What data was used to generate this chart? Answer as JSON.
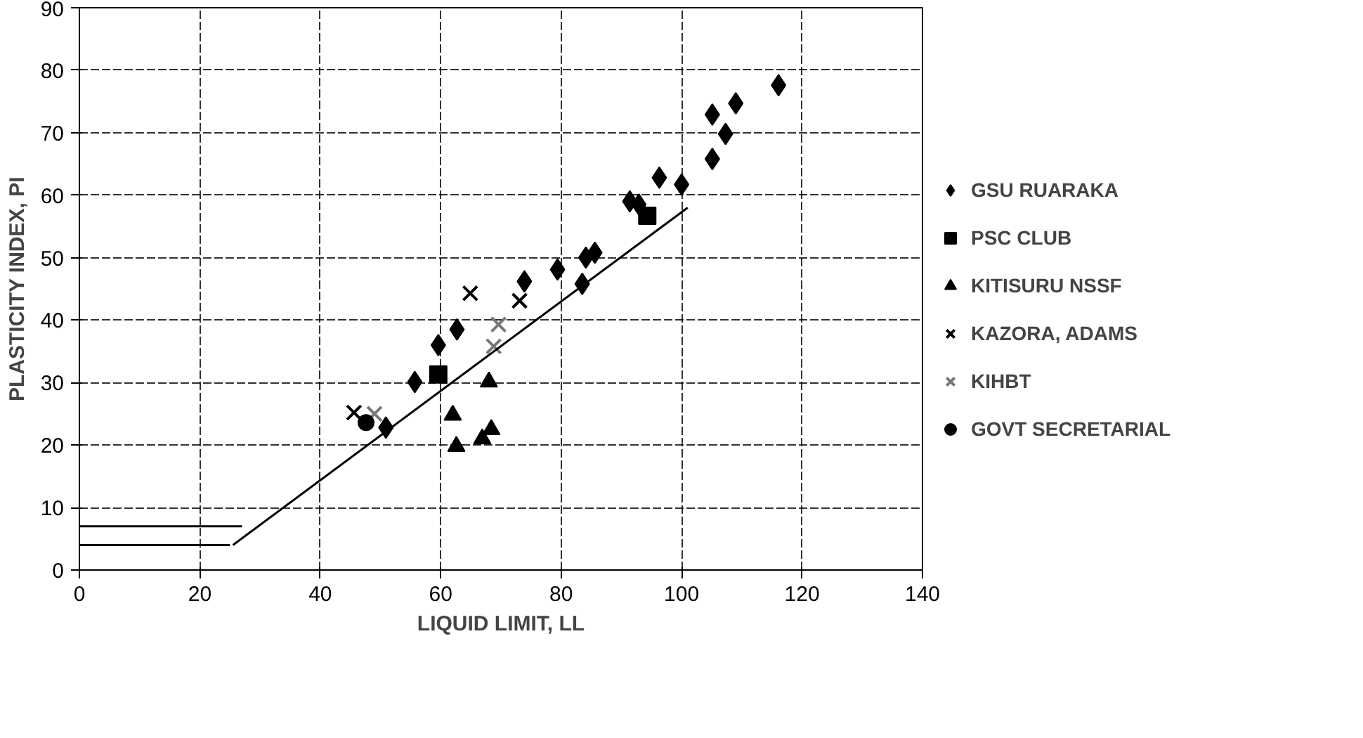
{
  "chart_data": {
    "type": "scatter",
    "xlabel": "LIQUID LIMIT, LL",
    "ylabel": "PLASTICITY INDEX, PI",
    "xlim": [
      0,
      140
    ],
    "ylim": [
      0,
      90
    ],
    "xticks": [
      0,
      20,
      40,
      60,
      80,
      100,
      120,
      140
    ],
    "yticks": [
      0,
      10,
      20,
      30,
      40,
      50,
      60,
      70,
      80,
      90
    ],
    "grid": true,
    "legend": "right",
    "series": [
      {
        "name": "GSU RUARAKA",
        "color": "#000000",
        "marker": "diamond",
        "x": [
          50.9,
          55.7,
          59.6,
          62.7,
          73.9,
          79.4,
          83.5,
          84.1,
          85.6,
          91.4,
          92.9,
          96.3,
          100,
          105.1,
          107.3,
          105.1,
          109,
          116.1
        ],
        "values": [
          22.8,
          30.1,
          36,
          38.5,
          46.2,
          48.1,
          45.8,
          50,
          50.8,
          59,
          58.5,
          62.8,
          61.7,
          65.8,
          69.8,
          72.9,
          74.7,
          77.6
        ]
      },
      {
        "name": "PSC CLUB",
        "color": "#000000",
        "marker": "square",
        "x": [
          59.6,
          94.3
        ],
        "values": [
          31.3,
          56.7
        ]
      },
      {
        "name": "KITISURU NSSF",
        "color": "#000000",
        "marker": "triangle",
        "x": [
          62.6,
          68,
          68.4,
          62,
          66.9
        ],
        "values": [
          19.8,
          30.1,
          22.5,
          24.8,
          21
        ]
      },
      {
        "name": "KAZORA, ADAMS",
        "color": "#000000",
        "marker": "cross",
        "x": [
          45.6,
          64.9,
          73.1
        ],
        "values": [
          25.2,
          44.3,
          43.1
        ]
      },
      {
        "name": "KIHBT",
        "color": "#777777",
        "marker": "cross",
        "x": [
          68.8,
          69.6,
          49
        ],
        "values": [
          35.8,
          39.3,
          25
        ]
      },
      {
        "name": "GOVT SECRETARIAL",
        "color": "#000000",
        "marker": "circle",
        "x": [
          47.6
        ],
        "values": [
          23.6
        ]
      },
      {
        "type": "line",
        "color": "#000000",
        "x": [
          25.5,
          101
        ],
        "values": [
          4,
          58
        ]
      },
      {
        "type": "line",
        "color": "#000000",
        "x": [
          0,
          27
        ],
        "values": [
          7,
          7
        ]
      },
      {
        "type": "line",
        "color": "#000000",
        "x": [
          0,
          25
        ],
        "values": [
          4,
          4
        ]
      }
    ]
  }
}
